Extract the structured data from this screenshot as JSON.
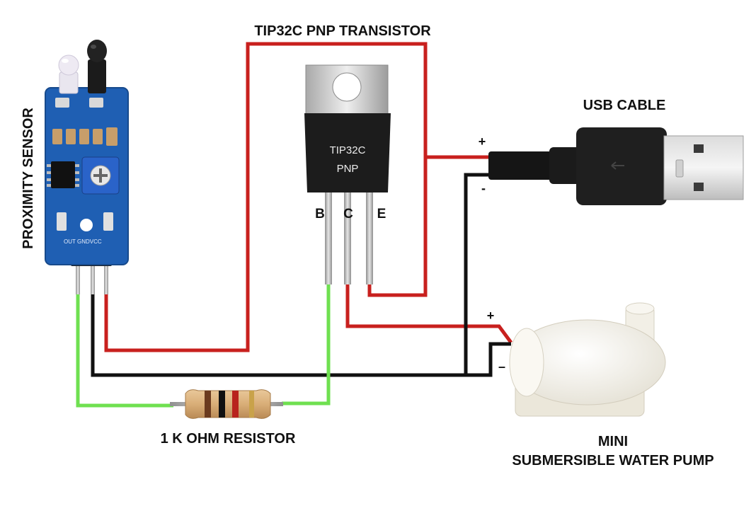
{
  "labels": {
    "transistor_title": "TIP32C PNP TRANSISTOR",
    "usb_cable": "USB CABLE",
    "proximity_sensor": "PROXIMITY SENSOR",
    "resistor": "1 K OHM RESISTOR",
    "pump_line1": "MINI",
    "pump_line2": "SUBMERSIBLE WATER PUMP",
    "pin_b": "B",
    "pin_c": "C",
    "pin_e": "E",
    "transistor_marking_1": "TIP32C",
    "transistor_marking_2": "PNP",
    "usb_plus": "+",
    "usb_minus": "-",
    "pump_plus": "+",
    "pump_minus": "–",
    "sensor_pins": "OUT GNDVCC"
  },
  "colors": {
    "wire_red": "#c8201e",
    "wire_black": "#111111",
    "wire_green": "#6fe050",
    "pcb_blue": "#1f5fb3",
    "pump_body": "#f3f1ea"
  }
}
